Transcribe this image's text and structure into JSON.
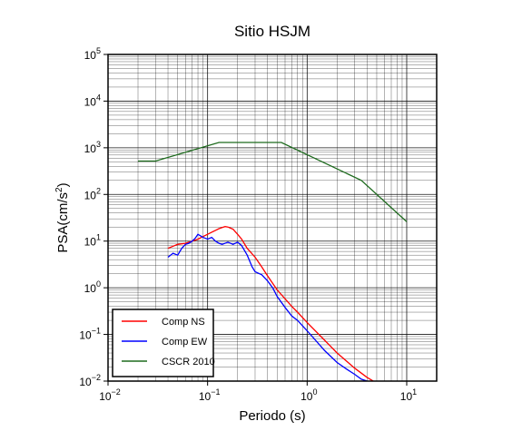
{
  "chart_data": {
    "type": "line",
    "title": "Sitio HSJM",
    "xlabel": "Periodo (s)",
    "ylabel_main": "PSA(cm/s",
    "ylabel_sup": "2",
    "ylabel_close": ")",
    "x_scale": "log",
    "y_scale": "log",
    "xlim": [
      0.01,
      20
    ],
    "ylim": [
      0.01,
      100000
    ],
    "grid": true,
    "legend_position": "bottom-left",
    "x_ticks": [
      {
        "base": "10",
        "exp": "−2",
        "value": 0.01
      },
      {
        "base": "10",
        "exp": "−1",
        "value": 0.1
      },
      {
        "base": "10",
        "exp": "0",
        "value": 1
      },
      {
        "base": "10",
        "exp": "1",
        "value": 10
      }
    ],
    "y_ticks": [
      {
        "base": "10",
        "exp": "−2",
        "value": 0.01
      },
      {
        "base": "10",
        "exp": "−1",
        "value": 0.1
      },
      {
        "base": "10",
        "exp": "0",
        "value": 1
      },
      {
        "base": "10",
        "exp": "1",
        "value": 10
      },
      {
        "base": "10",
        "exp": "2",
        "value": 100
      },
      {
        "base": "10",
        "exp": "3",
        "value": 1000
      },
      {
        "base": "10",
        "exp": "4",
        "value": 10000
      },
      {
        "base": "10",
        "exp": "5",
        "value": 100000
      }
    ],
    "series": [
      {
        "name": "Comp NS",
        "color": "#ff0000",
        "x": [
          0.04,
          0.05,
          0.06,
          0.07,
          0.08,
          0.09,
          0.1,
          0.11,
          0.12,
          0.13,
          0.14,
          0.15,
          0.16,
          0.18,
          0.2,
          0.22,
          0.25,
          0.3,
          0.35,
          0.4,
          0.5,
          0.6,
          0.7,
          0.8,
          1.0,
          1.5,
          2.0,
          3.0,
          4.0,
          4.8
        ],
        "y": [
          7,
          8.5,
          9,
          10,
          11,
          12.5,
          14,
          15.5,
          17,
          18.5,
          19.5,
          20.5,
          20,
          18,
          14,
          11,
          7,
          4.5,
          2.8,
          1.8,
          0.9,
          0.58,
          0.4,
          0.3,
          0.18,
          0.075,
          0.04,
          0.019,
          0.012,
          0.0095
        ]
      },
      {
        "name": "Comp EW",
        "color": "#0000ff",
        "x": [
          0.04,
          0.045,
          0.05,
          0.055,
          0.06,
          0.065,
          0.07,
          0.075,
          0.08,
          0.085,
          0.09,
          0.1,
          0.11,
          0.12,
          0.13,
          0.14,
          0.16,
          0.18,
          0.2,
          0.22,
          0.25,
          0.28,
          0.3,
          0.35,
          0.4,
          0.45,
          0.5,
          0.6,
          0.7,
          0.8,
          1.0,
          1.5,
          2.0,
          2.5,
          3.0,
          3.5,
          4.3
        ],
        "y": [
          4.5,
          5.5,
          5,
          7,
          8.5,
          9,
          10,
          11.5,
          14,
          13,
          12,
          11,
          12,
          10,
          9,
          8.5,
          9.5,
          8.5,
          9.5,
          8,
          5,
          2.8,
          2.2,
          1.9,
          1.4,
          1.0,
          0.65,
          0.38,
          0.25,
          0.2,
          0.12,
          0.045,
          0.025,
          0.018,
          0.014,
          0.011,
          0.0095
        ]
      },
      {
        "name": "CSCR 2010",
        "color": "#1e6b1e",
        "x": [
          0.02,
          0.03,
          0.13,
          0.55,
          3.5,
          10
        ],
        "y": [
          520,
          520,
          1300,
          1300,
          200,
          26
        ]
      }
    ]
  }
}
